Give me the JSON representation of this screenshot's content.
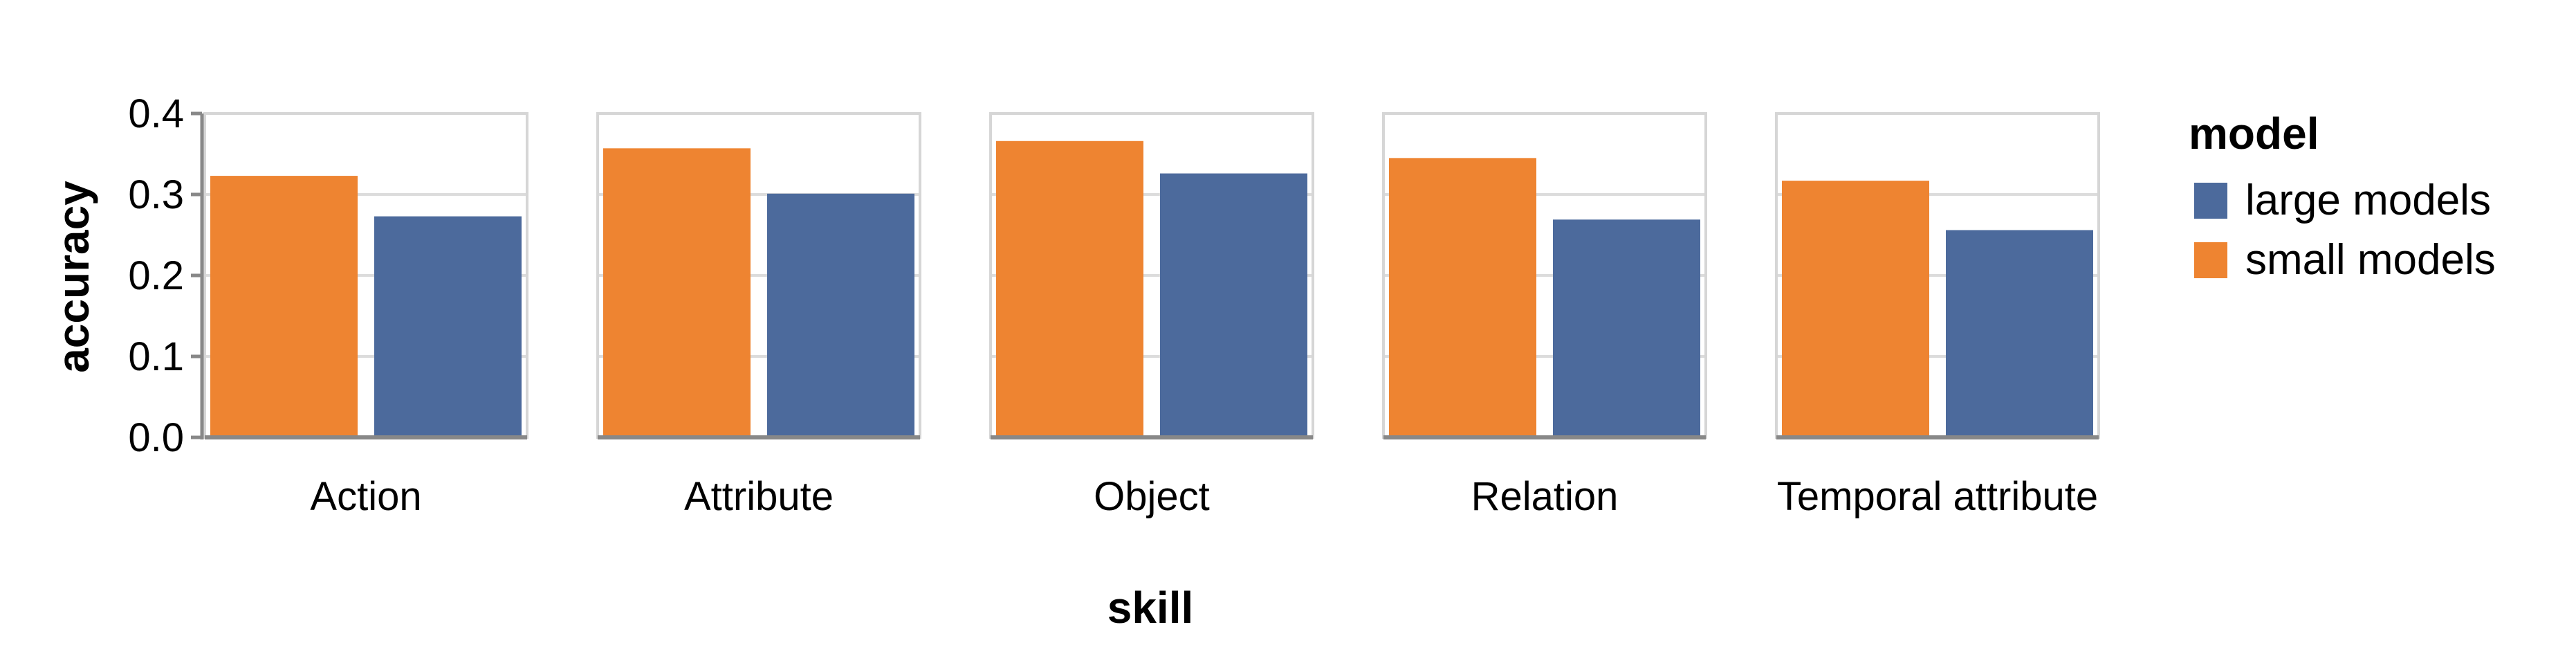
{
  "chart_data": {
    "type": "bar",
    "xlabel": "skill",
    "ylabel": "accuracy",
    "ylim": [
      0,
      0.4
    ],
    "yticks": [
      "0.0",
      "0.1",
      "0.2",
      "0.3",
      "0.4"
    ],
    "grid": true,
    "legend": {
      "title": "model",
      "placement": "right",
      "entries": [
        {
          "name": "large models",
          "color": "#4c6a9c"
        },
        {
          "name": "small models",
          "color": "#ee8431"
        }
      ]
    },
    "facets": [
      "Action",
      "Attribute",
      "Object",
      "Relation",
      "Temporal attribute"
    ],
    "series": [
      {
        "name": "small models",
        "color": "#ee8431",
        "values": [
          0.323,
          0.357,
          0.366,
          0.345,
          0.317
        ]
      },
      {
        "name": "large models",
        "color": "#4c6a9c",
        "values": [
          0.273,
          0.301,
          0.326,
          0.269,
          0.256
        ]
      }
    ]
  }
}
